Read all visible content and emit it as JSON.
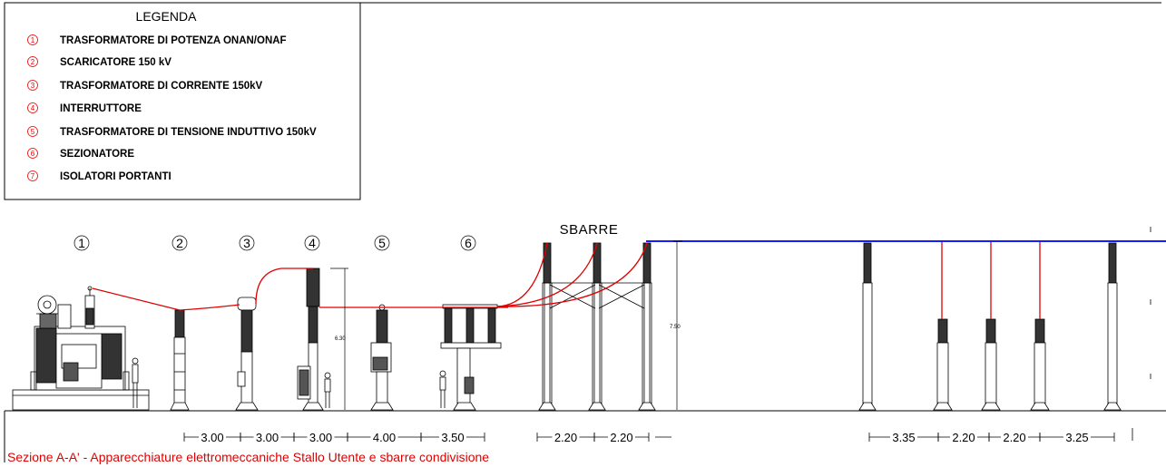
{
  "legend": {
    "title": "LEGENDA",
    "items": [
      {
        "num": "1",
        "label": "TRASFORMATORE DI POTENZA ONAN/ONAF"
      },
      {
        "num": "2",
        "label": "SCARICATORE 150 kV"
      },
      {
        "num": "3",
        "label": "TRASFORMATORE DI CORRENTE 150kV"
      },
      {
        "num": "4",
        "label": "INTERRUTTORE"
      },
      {
        "num": "5",
        "label": "TRASFORMATORE DI TENSIONE INDUTTIVO 150kV"
      },
      {
        "num": "6",
        "label": "SEZIONATORE"
      },
      {
        "num": "7",
        "label": "ISOLATORI PORTANTI"
      }
    ]
  },
  "equipment_numbers": [
    "1",
    "2",
    "3",
    "4",
    "5",
    "6"
  ],
  "busbar_label": "SBARRE",
  "heights": {
    "breaker": "6.30",
    "busbar": "7.50"
  },
  "dimensions": [
    "3.00",
    "3.00",
    "3.00",
    "4.00",
    "3.50",
    "2.20",
    "2.20",
    "3.35",
    "2.20",
    "2.20",
    "3.25"
  ],
  "caption": "Sezione A-A' - Apparecchiature elettromeccaniche Stallo Utente e sbarre condivisione",
  "colors": {
    "conductor": "#e00000",
    "busbar": "#1a1aff",
    "caption": "#e00000",
    "line": "#000000"
  }
}
